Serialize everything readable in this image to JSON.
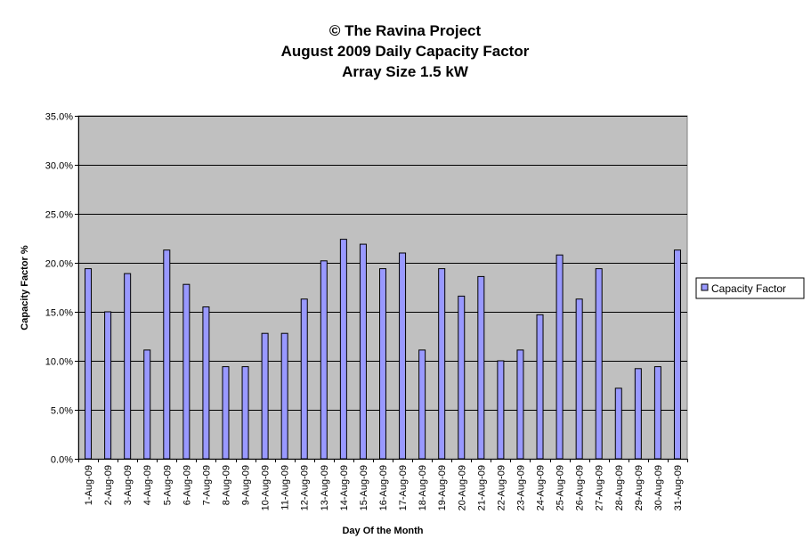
{
  "chart_data": {
    "type": "bar",
    "title_lines": [
      "© The Ravina Project",
      "August 2009 Daily Capacity Factor",
      "Array Size 1.5 kW"
    ],
    "xlabel": "Day Of the Month",
    "ylabel": "Capacity Factor %",
    "ylim": [
      0,
      35
    ],
    "ytick_values": [
      0,
      5,
      10,
      15,
      20,
      25,
      30,
      35
    ],
    "ytick_labels": [
      "0.0%",
      "5.0%",
      "10.0%",
      "15.0%",
      "20.0%",
      "25.0%",
      "30.0%",
      "35.0%"
    ],
    "categories": [
      "1-Aug-09",
      "2-Aug-09",
      "3-Aug-09",
      "4-Aug-09",
      "5-Aug-09",
      "6-Aug-09",
      "7-Aug-09",
      "8-Aug-09",
      "9-Aug-09",
      "10-Aug-09",
      "11-Aug-09",
      "12-Aug-09",
      "13-Aug-09",
      "14-Aug-09",
      "15-Aug-09",
      "16-Aug-09",
      "17-Aug-09",
      "18-Aug-09",
      "19-Aug-09",
      "20-Aug-09",
      "21-Aug-09",
      "22-Aug-09",
      "23-Aug-09",
      "24-Aug-09",
      "25-Aug-09",
      "26-Aug-09",
      "27-Aug-09",
      "28-Aug-09",
      "29-Aug-09",
      "30-Aug-09",
      "31-Aug-09"
    ],
    "series": [
      {
        "name": "Capacity Factor",
        "values": [
          19.4,
          15.0,
          18.9,
          11.1,
          21.3,
          17.8,
          15.5,
          9.4,
          9.4,
          12.8,
          12.8,
          16.3,
          20.2,
          22.4,
          21.9,
          19.4,
          21.0,
          11.1,
          19.4,
          16.6,
          18.6,
          10.0,
          11.1,
          14.7,
          20.8,
          16.3,
          19.4,
          7.2,
          9.2,
          9.4,
          21.3
        ]
      }
    ],
    "grid": true,
    "legend": "right",
    "colors": {
      "bar_fill": "#9999ff",
      "bar_stroke": "#000000",
      "plot_background": "#c0c0c0",
      "gridline": "#000000"
    }
  }
}
